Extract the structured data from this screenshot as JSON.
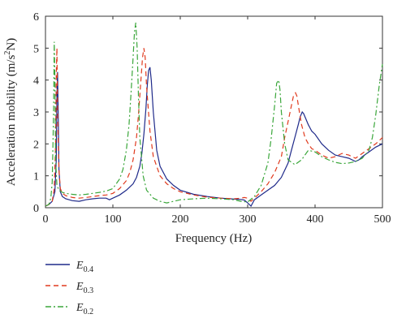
{
  "chart_data": {
    "type": "line",
    "title": "",
    "xlabel": "Frequency (Hz)",
    "ylabel": "Acceleration mobility (m/s²N)",
    "xlim": [
      0,
      500
    ],
    "ylim": [
      0,
      6
    ],
    "xticks": [
      0,
      100,
      200,
      300,
      400,
      500
    ],
    "yticks": [
      0,
      1,
      2,
      3,
      4,
      5,
      6
    ],
    "grid": false,
    "legend_position": "below",
    "series": [
      {
        "name": "E0.4",
        "label_main": "E",
        "label_sub": "0.4",
        "color": "#1f2a8a",
        "dash": "solid",
        "x": [
          0,
          5,
          10,
          14,
          16,
          17,
          18,
          19,
          20,
          22,
          25,
          30,
          40,
          50,
          60,
          70,
          80,
          90,
          95,
          100,
          110,
          120,
          130,
          135,
          140,
          143,
          146,
          149,
          151,
          153,
          155,
          157,
          160,
          165,
          170,
          180,
          190,
          200,
          220,
          240,
          260,
          280,
          290,
          295,
          300,
          305,
          310,
          320,
          330,
          340,
          350,
          360,
          365,
          370,
          375,
          378,
          381,
          383,
          386,
          390,
          395,
          400,
          410,
          420,
          430,
          440,
          450,
          460,
          465,
          470,
          480,
          490,
          500
        ],
        "y": [
          0.05,
          0.1,
          0.2,
          0.5,
          1.5,
          3.5,
          4.25,
          2.8,
          1.2,
          0.5,
          0.35,
          0.28,
          0.22,
          0.2,
          0.25,
          0.28,
          0.3,
          0.3,
          0.25,
          0.3,
          0.4,
          0.55,
          0.75,
          0.95,
          1.3,
          1.7,
          2.3,
          3.1,
          3.8,
          4.3,
          4.4,
          4.0,
          3.0,
          1.8,
          1.3,
          0.9,
          0.7,
          0.55,
          0.42,
          0.35,
          0.3,
          0.27,
          0.26,
          0.24,
          0.15,
          0.05,
          0.25,
          0.4,
          0.55,
          0.7,
          0.95,
          1.4,
          1.8,
          2.2,
          2.6,
          2.85,
          3.0,
          2.95,
          2.8,
          2.6,
          2.4,
          2.3,
          2.0,
          1.8,
          1.65,
          1.6,
          1.55,
          1.45,
          1.5,
          1.6,
          1.75,
          1.9,
          2.0
        ]
      },
      {
        "name": "E0.3",
        "label_main": "E",
        "label_sub": "0.3",
        "color": "#e03a1e",
        "dash": "6,4",
        "x": [
          0,
          5,
          10,
          13,
          15,
          16,
          17,
          18,
          20,
          22,
          25,
          30,
          40,
          50,
          60,
          70,
          80,
          90,
          95,
          100,
          110,
          120,
          125,
          130,
          135,
          138,
          141,
          144,
          146,
          148,
          150,
          155,
          160,
          170,
          180,
          190,
          200,
          220,
          240,
          260,
          280,
          290,
          295,
          300,
          305,
          310,
          320,
          330,
          340,
          350,
          355,
          360,
          365,
          368,
          371,
          373,
          376,
          380,
          385,
          390,
          395,
          400,
          410,
          420,
          430,
          440,
          450,
          460,
          470,
          480,
          490,
          500
        ],
        "y": [
          0.05,
          0.1,
          0.2,
          0.6,
          2.0,
          4.2,
          5.0,
          3.0,
          1.2,
          0.6,
          0.45,
          0.38,
          0.32,
          0.3,
          0.32,
          0.35,
          0.38,
          0.4,
          0.42,
          0.45,
          0.6,
          0.85,
          1.1,
          1.5,
          2.2,
          2.9,
          3.8,
          4.7,
          5.0,
          4.7,
          3.8,
          2.4,
          1.6,
          1.0,
          0.75,
          0.6,
          0.5,
          0.4,
          0.33,
          0.3,
          0.28,
          0.3,
          0.32,
          0.3,
          0.2,
          0.3,
          0.5,
          0.75,
          1.1,
          1.6,
          2.2,
          2.7,
          3.2,
          3.5,
          3.6,
          3.5,
          3.1,
          2.6,
          2.2,
          2.0,
          1.85,
          1.8,
          1.65,
          1.55,
          1.6,
          1.7,
          1.65,
          1.55,
          1.7,
          1.85,
          2.0,
          2.2
        ]
      },
      {
        "name": "E0.2",
        "label_main": "E",
        "label_sub": "0.2",
        "color": "#3aa63a",
        "dash": "7,3,2,3",
        "x": [
          0,
          5,
          8,
          10,
          12,
          13,
          14,
          15,
          17,
          20,
          25,
          30,
          40,
          50,
          60,
          70,
          80,
          90,
          100,
          110,
          115,
          120,
          124,
          127,
          130,
          132,
          134,
          136,
          138,
          140,
          145,
          150,
          160,
          170,
          180,
          190,
          200,
          220,
          240,
          260,
          280,
          290,
          300,
          310,
          320,
          330,
          335,
          340,
          343,
          346,
          348,
          350,
          355,
          360,
          370,
          380,
          390,
          400,
          410,
          420,
          430,
          440,
          450,
          460,
          470,
          480,
          485,
          490,
          495,
          500
        ],
        "y": [
          0.05,
          0.1,
          0.3,
          0.8,
          3.0,
          5.2,
          4.0,
          1.5,
          0.7,
          0.55,
          0.48,
          0.45,
          0.42,
          0.4,
          0.42,
          0.45,
          0.48,
          0.52,
          0.6,
          0.9,
          1.2,
          1.8,
          2.6,
          3.6,
          4.7,
          5.5,
          5.8,
          5.0,
          3.5,
          2.2,
          1.0,
          0.55,
          0.3,
          0.2,
          0.15,
          0.2,
          0.25,
          0.28,
          0.3,
          0.28,
          0.25,
          0.2,
          0.18,
          0.35,
          0.7,
          1.4,
          2.2,
          3.2,
          3.9,
          4.0,
          3.7,
          3.0,
          2.0,
          1.5,
          1.35,
          1.5,
          1.8,
          1.75,
          1.6,
          1.5,
          1.42,
          1.38,
          1.4,
          1.45,
          1.55,
          1.8,
          2.2,
          2.9,
          3.8,
          4.5
        ]
      }
    ]
  }
}
